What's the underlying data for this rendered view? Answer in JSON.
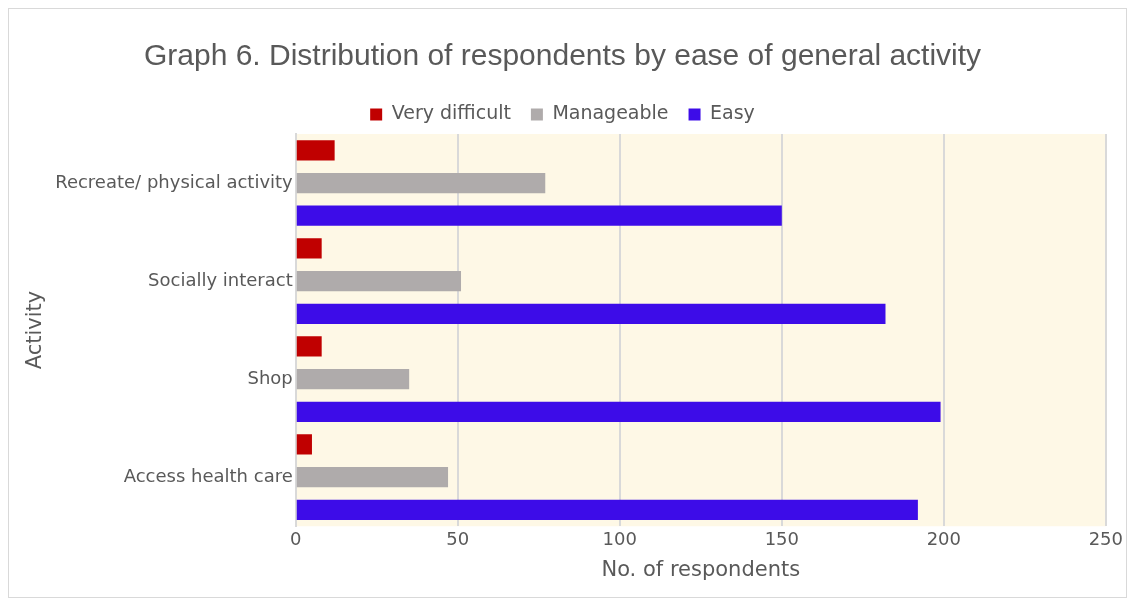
{
  "chart_data": {
    "type": "bar",
    "orientation": "horizontal",
    "title": "Graph 6. Distribution of respondents by ease of general activity",
    "xlabel": "No. of respondents",
    "ylabel": "Activity",
    "categories": [
      "Recreate/ physical activity",
      "Socially interact",
      "Shop",
      "Access health care"
    ],
    "series": [
      {
        "name": "Very difficult",
        "color": "#c00000",
        "values": [
          12,
          8,
          8,
          5
        ]
      },
      {
        "name": "Manageable",
        "color": "#afabab",
        "values": [
          77,
          51,
          35,
          47
        ]
      },
      {
        "name": "Easy",
        "color": "#3d0ce8",
        "values": [
          150,
          182,
          199,
          192
        ]
      }
    ],
    "xlim": [
      0,
      250
    ],
    "xticks": [
      0,
      50,
      100,
      150,
      200,
      250
    ],
    "grid": "x",
    "legend": "top"
  }
}
